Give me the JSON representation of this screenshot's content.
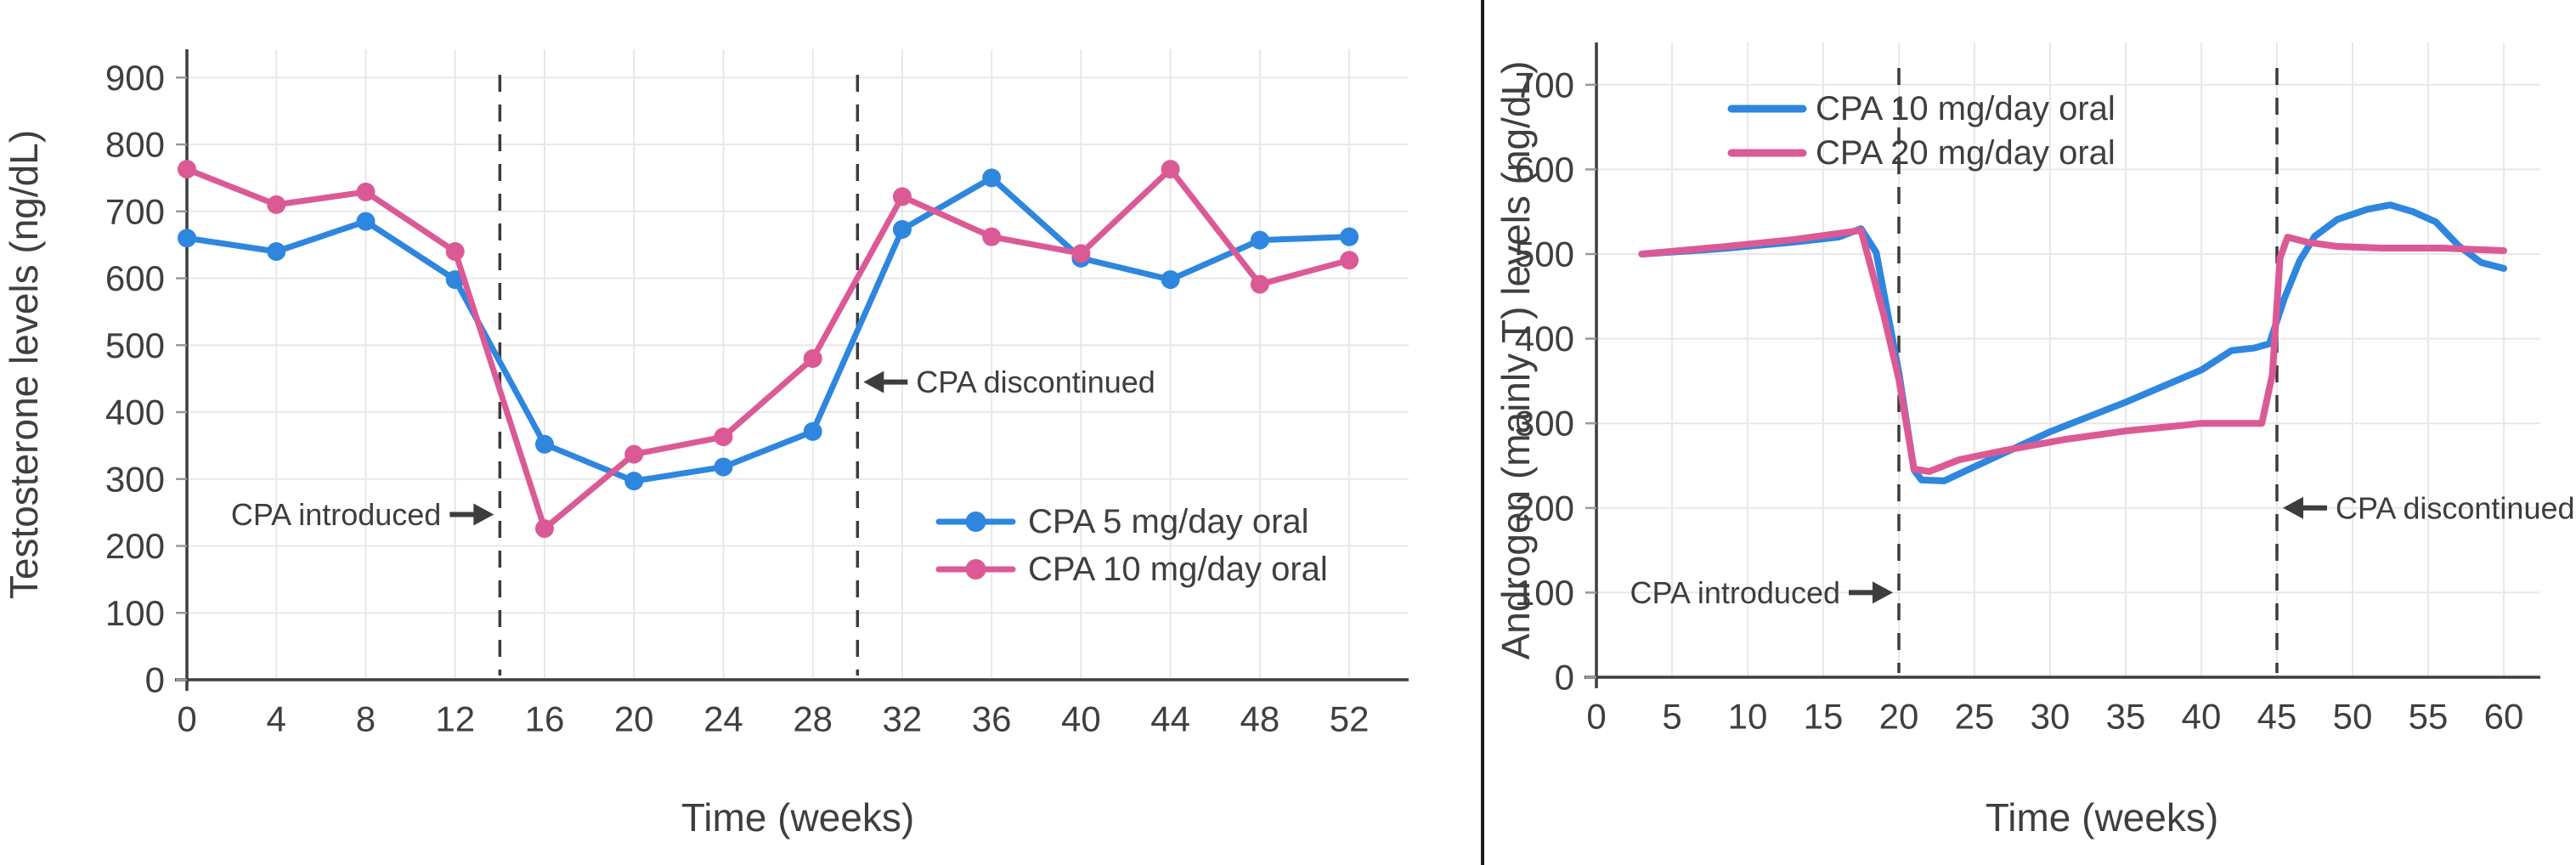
{
  "page": {
    "background": "#ffffff",
    "divider_color": "#1d1d1d"
  },
  "colors": {
    "blue_series": "#2e86de",
    "pink_series": "#db5a96",
    "gridline": "#e8e8e8",
    "spine": "#3d3d3d",
    "dashed_line": "#3b3b3b",
    "text": "#3f3f3f"
  },
  "chart_data": [
    {
      "type": "line",
      "title": "",
      "xlabel": "Time (weeks)",
      "ylabel": "Testosterone levels (ng/dL)",
      "xlim": [
        -0.6,
        54.6
      ],
      "ylim": [
        0,
        942
      ],
      "x_ticks": [
        0,
        4,
        8,
        12,
        16,
        20,
        24,
        28,
        32,
        36,
        40,
        44,
        48,
        52
      ],
      "y_ticks": [
        0,
        100,
        200,
        300,
        400,
        500,
        600,
        700,
        800,
        900
      ],
      "grid": true,
      "legend_position": "inside lower right",
      "series": [
        {
          "name": "CPA 5 mg/day oral",
          "color": "#2e86de",
          "markers": true,
          "values": [
            [
              0,
              660
            ],
            [
              4,
              640
            ],
            [
              8,
              685
            ],
            [
              12,
              598
            ],
            [
              16,
              352
            ],
            [
              20,
              297
            ],
            [
              24,
              318
            ],
            [
              28,
              371
            ],
            [
              32,
              673
            ],
            [
              36,
              750
            ],
            [
              40,
              630
            ],
            [
              44,
              598
            ],
            [
              48,
              657
            ],
            [
              52,
              662
            ]
          ]
        },
        {
          "name": "CPA 10 mg/day oral",
          "color": "#db5a96",
          "markers": true,
          "values": [
            [
              0,
              763
            ],
            [
              4,
              710
            ],
            [
              8,
              729
            ],
            [
              12,
              640
            ],
            [
              16,
              226
            ],
            [
              20,
              337
            ],
            [
              24,
              363
            ],
            [
              28,
              480
            ],
            [
              32,
              722
            ],
            [
              36,
              662
            ],
            [
              40,
              637
            ],
            [
              44,
              763
            ],
            [
              48,
              591
            ],
            [
              52,
              627
            ]
          ]
        }
      ],
      "vlines": [
        {
          "x": 14
        },
        {
          "x": 30
        }
      ],
      "annotations": [
        {
          "text": "CPA introduced",
          "x": 14,
          "y": 247,
          "side": "left"
        },
        {
          "text": "CPA discontinued",
          "x": 30,
          "y": 445,
          "side": "right"
        }
      ]
    },
    {
      "type": "line",
      "title": "",
      "xlabel": "Time (weeks)",
      "ylabel": "Androgen (mainly T) levels (ng/dL)",
      "xlim": [
        -1,
        62.4
      ],
      "ylim": [
        0,
        750
      ],
      "x_ticks": [
        0,
        5,
        10,
        15,
        20,
        25,
        30,
        35,
        40,
        45,
        50,
        55,
        60
      ],
      "y_ticks": [
        0,
        100,
        200,
        300,
        400,
        500,
        600,
        700
      ],
      "grid": true,
      "legend_position": "inside upper left",
      "series": [
        {
          "name": "CPA 10 mg/day oral",
          "color": "#2e86de",
          "markers": false,
          "values": [
            [
              3,
              500
            ],
            [
              8,
              506
            ],
            [
              13,
              514
            ],
            [
              16,
              520
            ],
            [
              17.5,
              530
            ],
            [
              18.5,
              502
            ],
            [
              20,
              360
            ],
            [
              21,
              245
            ],
            [
              21.5,
              233
            ],
            [
              23,
              232
            ],
            [
              26,
              257
            ],
            [
              30,
              290
            ],
            [
              35,
              325
            ],
            [
              40,
              363
            ],
            [
              42,
              386
            ],
            [
              43.5,
              389
            ],
            [
              44.5,
              394
            ],
            [
              45.5,
              448
            ],
            [
              46.5,
              492
            ],
            [
              47.5,
              521
            ],
            [
              49,
              541
            ],
            [
              51,
              553
            ],
            [
              52.5,
              558
            ],
            [
              54,
              550
            ],
            [
              55.5,
              538
            ],
            [
              57,
              510
            ],
            [
              58.5,
              490
            ],
            [
              60,
              483
            ]
          ]
        },
        {
          "name": "CPA 20 mg/day oral",
          "color": "#db5a96",
          "markers": false,
          "values": [
            [
              3,
              500
            ],
            [
              8,
              508
            ],
            [
              13,
              517
            ],
            [
              17.5,
              528
            ],
            [
              19,
              428
            ],
            [
              20,
              352
            ],
            [
              21,
              246
            ],
            [
              22,
              243
            ],
            [
              24,
              257
            ],
            [
              27,
              268
            ],
            [
              31,
              281
            ],
            [
              35,
              291
            ],
            [
              39,
              298
            ],
            [
              40,
              300
            ],
            [
              44,
              300
            ],
            [
              44.7,
              358
            ],
            [
              45.2,
              495
            ],
            [
              45.7,
              520
            ],
            [
              47,
              514
            ],
            [
              49,
              509
            ],
            [
              52,
              507
            ],
            [
              56,
              507
            ],
            [
              60,
              504
            ]
          ]
        }
      ],
      "vlines": [
        {
          "x": 20
        },
        {
          "x": 45
        }
      ],
      "annotations": [
        {
          "text": "CPA introduced",
          "x": 20,
          "y": 100,
          "side": "left"
        },
        {
          "text": "CPA discontinued",
          "x": 45,
          "y": 200,
          "side": "right"
        }
      ]
    }
  ]
}
